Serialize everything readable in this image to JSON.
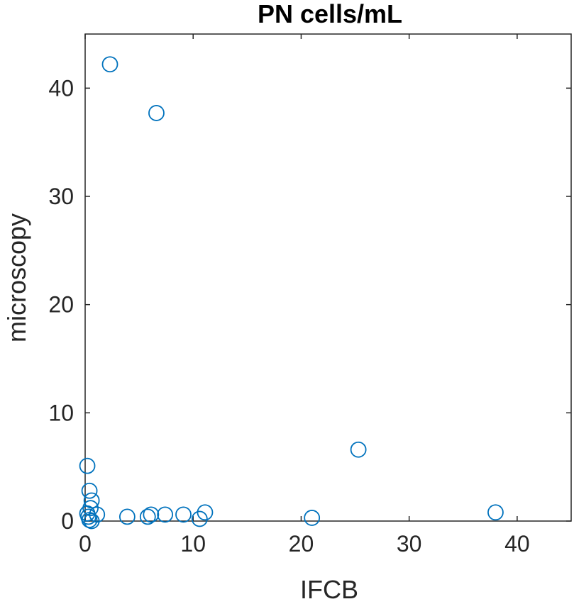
{
  "chart_data": {
    "type": "scatter",
    "title": "PN cells/mL",
    "xlabel": "IFCB",
    "ylabel": "microscopy",
    "xlim": [
      0,
      45
    ],
    "ylim": [
      0,
      45
    ],
    "xticks": [
      0,
      10,
      20,
      30,
      40
    ],
    "yticks": [
      0,
      10,
      20,
      30,
      40
    ],
    "xtick_labels": [
      "0",
      "10",
      "20",
      "30",
      "40"
    ],
    "ytick_labels": [
      "0",
      "10",
      "20",
      "30",
      "40"
    ],
    "grid": false,
    "box": true,
    "marker": "open-circle",
    "color": "#0072BD",
    "axis_color": "#262626",
    "points": [
      {
        "x": 2.3,
        "y": 42.2
      },
      {
        "x": 6.6,
        "y": 37.7
      },
      {
        "x": 25.3,
        "y": 6.6
      },
      {
        "x": 38.0,
        "y": 0.8
      },
      {
        "x": 21.0,
        "y": 0.3
      },
      {
        "x": 11.1,
        "y": 0.8
      },
      {
        "x": 10.6,
        "y": 0.2
      },
      {
        "x": 9.1,
        "y": 0.6
      },
      {
        "x": 7.4,
        "y": 0.6
      },
      {
        "x": 6.1,
        "y": 0.6
      },
      {
        "x": 5.8,
        "y": 0.4
      },
      {
        "x": 3.9,
        "y": 0.4
      },
      {
        "x": 1.1,
        "y": 0.6
      },
      {
        "x": 0.2,
        "y": 5.1
      },
      {
        "x": 0.4,
        "y": 2.8
      },
      {
        "x": 0.6,
        "y": 1.9
      },
      {
        "x": 0.5,
        "y": 1.2
      },
      {
        "x": 0.2,
        "y": 0.7
      },
      {
        "x": 0.3,
        "y": 0.4
      },
      {
        "x": 0.4,
        "y": 0.1
      },
      {
        "x": 0.6,
        "y": 0.0
      }
    ]
  }
}
